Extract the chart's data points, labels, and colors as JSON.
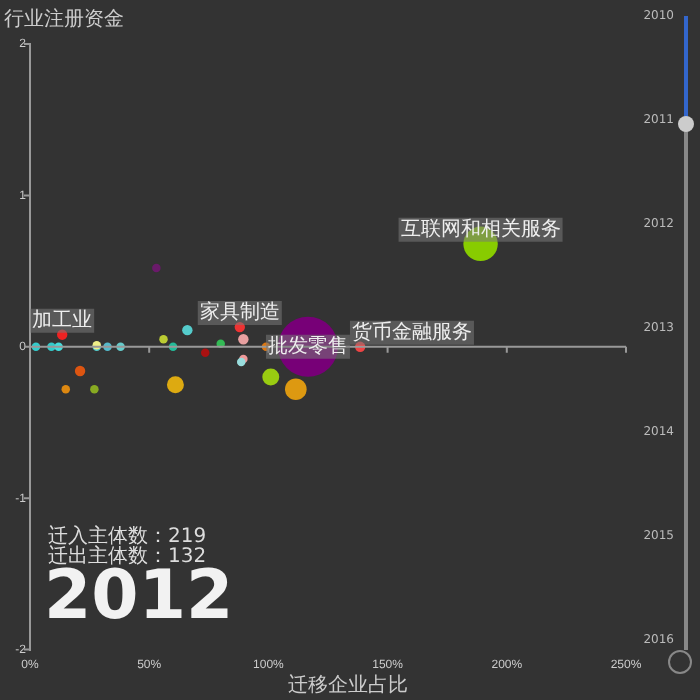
{
  "chart_data": {
    "type": "bubble",
    "xlabel": "迁移企业占比",
    "ylabel": "行业注册资金",
    "xlim": [
      0,
      250
    ],
    "xticks": [
      {
        "value": 0,
        "label": "0%"
      },
      {
        "value": 50,
        "label": "50%"
      },
      {
        "value": 100,
        "label": "100%"
      },
      {
        "value": 150,
        "label": "150%"
      },
      {
        "value": 200,
        "label": "200%"
      },
      {
        "value": 250,
        "label": "250%"
      }
    ],
    "ylim": [
      -2,
      2
    ],
    "yticks": [
      -2,
      -1,
      0,
      1,
      2
    ],
    "grid": false,
    "legend": false,
    "ref_lines": [
      {
        "axis": "y",
        "value": 0,
        "color": "#999999"
      }
    ],
    "x": [
      116.6,
      189,
      53,
      13.5,
      66,
      89.5,
      88,
      56,
      99,
      61,
      21,
      15,
      27,
      101,
      111.5,
      138.5,
      2.5,
      9,
      12,
      28,
      32.5,
      38,
      60,
      89.5,
      88.6,
      28,
      73.5,
      80
    ],
    "values": [
      0,
      0.68,
      0.52,
      0.08,
      0.11,
      0.05,
      0.13,
      0.05,
      0,
      -0.25,
      -0.16,
      -0.28,
      -0.28,
      -0.2,
      -0.28,
      0,
      0,
      0,
      0,
      0,
      0,
      0,
      0,
      -0.08,
      -0.1,
      0.01,
      -0.04,
      0.02
    ],
    "sizes": [
      1,
      0.33,
      0.02,
      0.03,
      0.03,
      0.03,
      0.03,
      0.02,
      0.02,
      0.08,
      0.03,
      0.02,
      0.02,
      0.08,
      0.13,
      0.03,
      0.02,
      0.02,
      0.02,
      0.02,
      0.02,
      0.02,
      0.02,
      0.02,
      0.02,
      0.02,
      0.02,
      0.02
    ],
    "colors": [
      "#770077",
      "#88cc00",
      "#6a1a6a",
      "#ee2222",
      "#55cccc",
      "#e8a0a0",
      "#ee3333",
      "#bbcc33",
      "#dd7711",
      "#ddaa11",
      "#dd5511",
      "#dd8811",
      "#88aa22",
      "#99cc11",
      "#dd9911",
      "#ee4444",
      "#33cccc",
      "#33cccc",
      "#44dddd",
      "#55cccc",
      "#55bbcc",
      "#66cccc",
      "#22bb99",
      "#ee9999",
      "#99dddd",
      "#eeee88",
      "#aa1111",
      "#33bb55"
    ],
    "annotations": [
      {
        "text": "加工业",
        "x": 13.5,
        "y": 0.08
      },
      {
        "text": "家具制造",
        "x": 88,
        "y": 0.13
      },
      {
        "text": "批发零售",
        "x": 116.6,
        "y": 0
      },
      {
        "text": "货币金融服务",
        "x": 138.5,
        "y": 0
      },
      {
        "text": "互联网和相关服务",
        "x": 189,
        "y": 0.68
      },
      "迁入主体数：219",
      "迁出主体数：132",
      "2012",
      "2010",
      "2011",
      "2012",
      "2013",
      "2014",
      "2015",
      "2016"
    ]
  }
}
